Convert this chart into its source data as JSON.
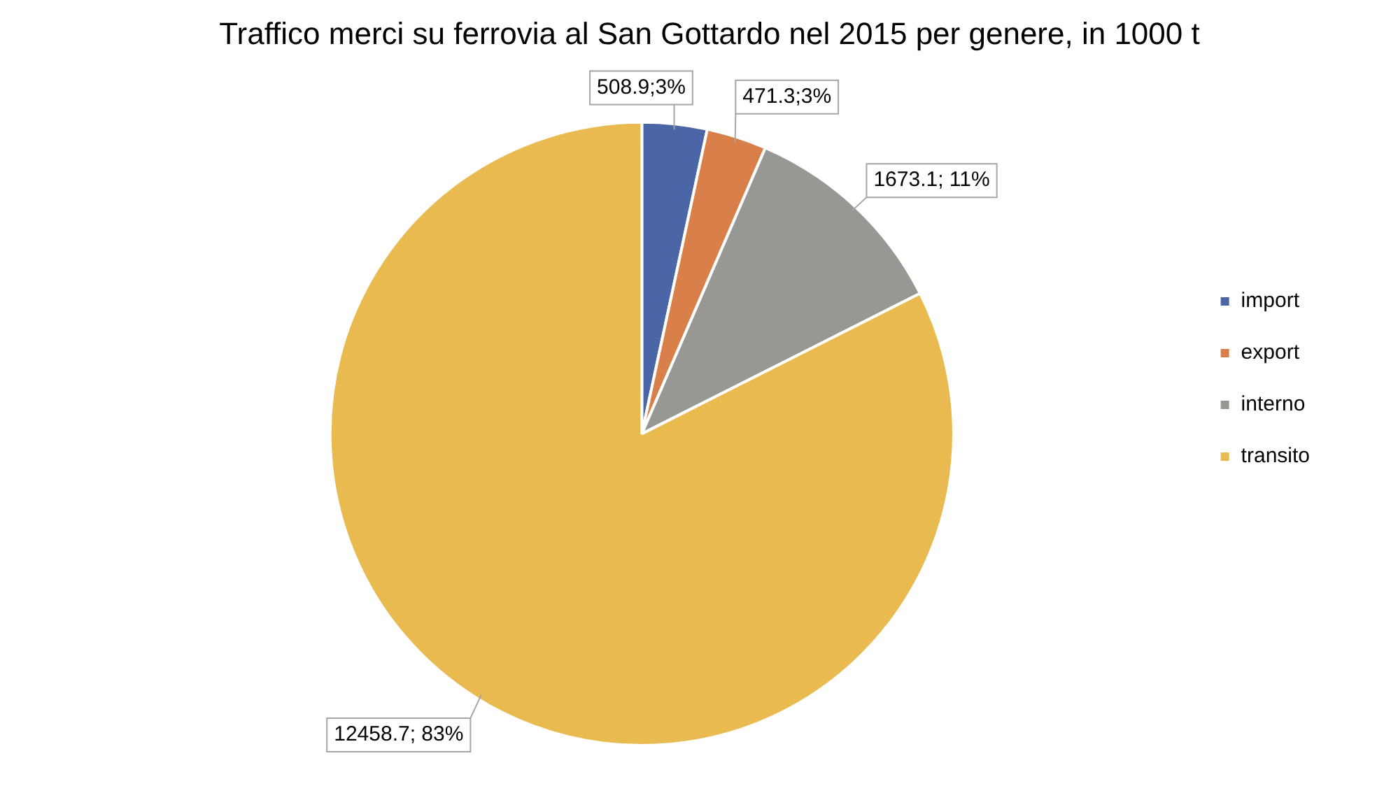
{
  "chart_data": {
    "type": "pie",
    "title": "Traffico merci su ferrovia al San Gottardo nel 2015 per genere, in 1000 t",
    "categories": [
      "import",
      "export",
      "interno",
      "transito"
    ],
    "values": [
      508.9,
      471.3,
      1673.1,
      12458.7
    ],
    "colors": [
      "#4a66a6",
      "#d9804a",
      "#979894",
      "#e9ba50"
    ],
    "value_labels": [
      "508.9;3%",
      "471.3;3%",
      "1673.1; 11%",
      "12458.7; 83%"
    ],
    "legend": "right"
  }
}
